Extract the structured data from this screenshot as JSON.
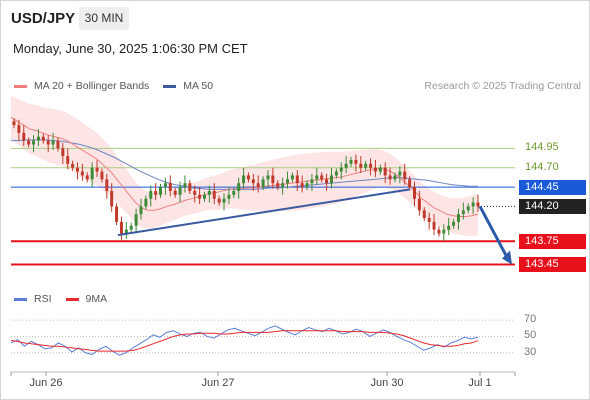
{
  "header": {
    "symbol": "USD/JPY",
    "timeframe": "30 MIN",
    "datetime": "Monday, June 30, 2025 1:06:30 PM CET"
  },
  "legend": {
    "items": [
      {
        "label": "MA 20 + Bollinger Bands",
        "color": "#f08080"
      },
      {
        "label": "MA 50",
        "color": "#3a5a9a"
      }
    ],
    "source": "Research © 2025 Trading Central"
  },
  "rsi_legend": {
    "items": [
      {
        "label": "RSI",
        "color": "#5b7fd6"
      },
      {
        "label": "9MA",
        "color": "#e8282d"
      }
    ]
  },
  "colors": {
    "up_candle": "#3d8a37",
    "down_candle": "#c0392b",
    "band_fill": "#fde0e0",
    "ma20": "#f08080",
    "ma50": "#6e84c4",
    "trendline": "#3a5aa0",
    "resistance": "#a8d080",
    "support": "#e8101a",
    "pivot": "#1a5ad8",
    "current": "#222222"
  },
  "chart_data": [
    {
      "type": "candlestick",
      "title": "USD/JPY",
      "timeframe": "30 MIN",
      "x_tick_labels": [
        "Jun 26",
        "Jun 27",
        "Jun 30",
        "Jul 1"
      ],
      "ylim": [
        143.25,
        145.6
      ],
      "levels": [
        {
          "value": 144.95,
          "label": "144.95",
          "kind": "resistance"
        },
        {
          "value": 144.7,
          "label": "144.70",
          "kind": "resistance"
        },
        {
          "value": 144.45,
          "label": "144.45",
          "kind": "pivot"
        },
        {
          "value": 144.2,
          "label": "144.20",
          "kind": "current"
        },
        {
          "value": 143.75,
          "label": "143.75",
          "kind": "support"
        },
        {
          "value": 143.45,
          "label": "143.45",
          "kind": "support"
        }
      ],
      "close_series": [
        145.25,
        145.15,
        145.05,
        145.0,
        145.05,
        145.1,
        145.05,
        145.0,
        145.05,
        144.95,
        144.85,
        144.75,
        144.7,
        144.65,
        144.6,
        144.55,
        144.7,
        144.65,
        144.55,
        144.4,
        144.2,
        144.0,
        143.85,
        143.9,
        143.95,
        144.1,
        144.2,
        144.3,
        144.4,
        144.35,
        144.45,
        144.5,
        144.4,
        144.35,
        144.45,
        144.5,
        144.4,
        144.35,
        144.3,
        144.35,
        144.4,
        144.3,
        144.25,
        144.3,
        144.35,
        144.4,
        144.5,
        144.6,
        144.55,
        144.5,
        144.45,
        144.55,
        144.6,
        144.5,
        144.45,
        144.5,
        144.55,
        144.6,
        144.5,
        144.45,
        144.5,
        144.55,
        144.6,
        144.55,
        144.5,
        144.6,
        144.65,
        144.7,
        144.75,
        144.8,
        144.75,
        144.7,
        144.75,
        144.7,
        144.65,
        144.7,
        144.6,
        144.55,
        144.6,
        144.65,
        144.55,
        144.45,
        144.3,
        144.15,
        144.05,
        144.0,
        143.9,
        143.85,
        143.9,
        143.95,
        144.0,
        144.1,
        144.15,
        144.2,
        144.25,
        144.2
      ],
      "ma20_series": [
        145.35,
        145.3,
        145.25,
        145.2,
        145.18,
        145.15,
        145.12,
        145.1,
        145.08,
        145.05,
        145.0,
        144.95,
        144.9,
        144.85,
        144.8,
        144.72,
        144.65,
        144.55,
        144.45,
        144.35,
        144.25,
        144.18,
        144.15,
        144.15,
        144.17,
        144.2,
        144.22,
        144.25,
        144.28,
        144.3,
        144.32,
        144.35,
        144.37,
        144.38,
        144.4,
        144.42,
        144.43,
        144.43,
        144.44,
        144.44,
        144.45,
        144.46,
        144.47,
        144.48,
        144.49,
        144.5,
        144.51,
        144.52,
        144.53,
        144.54,
        144.55,
        144.56,
        144.57,
        144.58,
        144.6,
        144.62,
        144.64,
        144.66,
        144.68,
        144.69,
        144.68,
        144.65,
        144.6,
        144.53,
        144.46,
        144.38,
        144.3,
        144.24,
        144.18,
        144.14,
        144.1,
        144.08,
        144.07,
        144.07,
        144.08,
        144.1
      ],
      "ma50_series": [
        145.05,
        145.05,
        145.06,
        145.06,
        145.06,
        145.05,
        145.04,
        145.02,
        145.0,
        144.97,
        144.93,
        144.88,
        144.83,
        144.77,
        144.71,
        144.65,
        144.6,
        144.55,
        144.51,
        144.48,
        144.46,
        144.44,
        144.43,
        144.42,
        144.42,
        144.42,
        144.42,
        144.42,
        144.42,
        144.43,
        144.44,
        144.44,
        144.45,
        144.46,
        144.47,
        144.48,
        144.49,
        144.5,
        144.51,
        144.52,
        144.53,
        144.54,
        144.55,
        144.56,
        144.57,
        144.57,
        144.56,
        144.55,
        144.54,
        144.52,
        144.5,
        144.48,
        144.47,
        144.46,
        144.46
      ]
    },
    {
      "type": "line",
      "title": "RSI",
      "ylim": [
        15,
        80
      ],
      "y_tick_labels": [
        "70",
        "50",
        "30"
      ],
      "series": [
        {
          "name": "RSI",
          "values": [
            42,
            46,
            38,
            44,
            40,
            35,
            36,
            42,
            38,
            31,
            36,
            30,
            28,
            34,
            38,
            32,
            27,
            30,
            36,
            41,
            46,
            52,
            49,
            55,
            57,
            53,
            50,
            54,
            55,
            50,
            48,
            53,
            58,
            60,
            57,
            54,
            51,
            55,
            60,
            63,
            59,
            55,
            52,
            57,
            61,
            58,
            56,
            60,
            57,
            53,
            55,
            59,
            56,
            50,
            54,
            58,
            55,
            50,
            46,
            43,
            38,
            33,
            36,
            40,
            37,
            42,
            45,
            49,
            47,
            49
          ]
        },
        {
          "name": "9MA",
          "values": [
            45,
            44,
            42,
            41,
            40,
            39,
            38,
            38,
            37,
            36,
            35,
            34,
            33,
            32,
            32,
            32,
            32,
            32,
            33,
            35,
            38,
            41,
            44,
            47,
            50,
            52,
            53,
            53,
            54,
            54,
            54,
            53,
            53,
            54,
            55,
            55,
            55,
            55,
            55,
            56,
            57,
            57,
            57,
            57,
            57,
            57,
            57,
            57,
            57,
            56,
            56,
            56,
            56,
            55,
            55,
            55,
            54,
            53,
            51,
            48,
            45,
            42,
            40,
            39,
            38,
            38,
            39,
            41,
            42,
            45
          ]
        }
      ]
    }
  ]
}
